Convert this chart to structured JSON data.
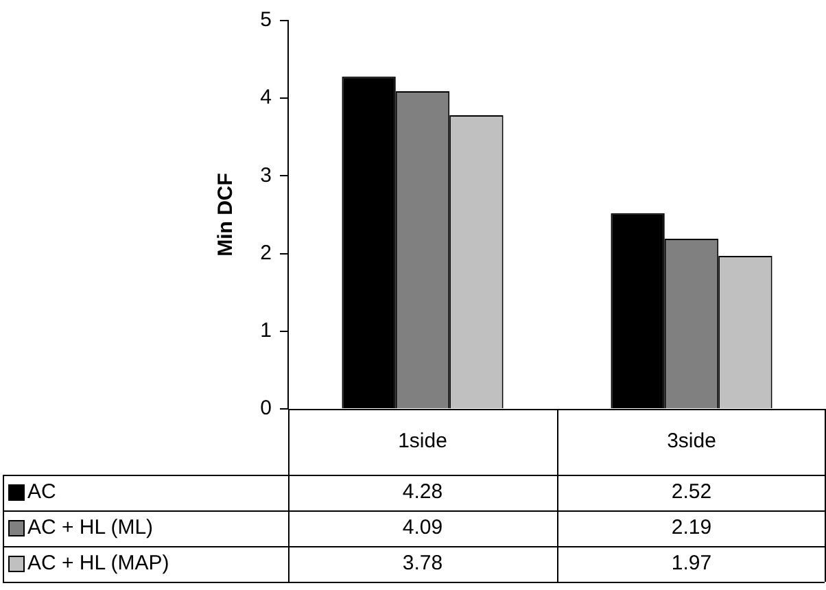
{
  "chart_data": {
    "type": "bar",
    "ylabel": "Min DCF",
    "categories": [
      "1side",
      "3side"
    ],
    "series": [
      {
        "name": "AC",
        "color": "#000000",
        "values": [
          4.28,
          2.52
        ]
      },
      {
        "name": "AC + HL (ML)",
        "color": "#808080",
        "values": [
          4.09,
          2.19
        ]
      },
      {
        "name": "AC + HL (MAP)",
        "color": "#c0c0c0",
        "values": [
          3.78,
          1.97
        ]
      }
    ],
    "ylim": [
      0,
      5
    ],
    "yticks": [
      0,
      1,
      2,
      3,
      4,
      5
    ],
    "grid": false,
    "legend": "bottom",
    "data_labels": true
  }
}
